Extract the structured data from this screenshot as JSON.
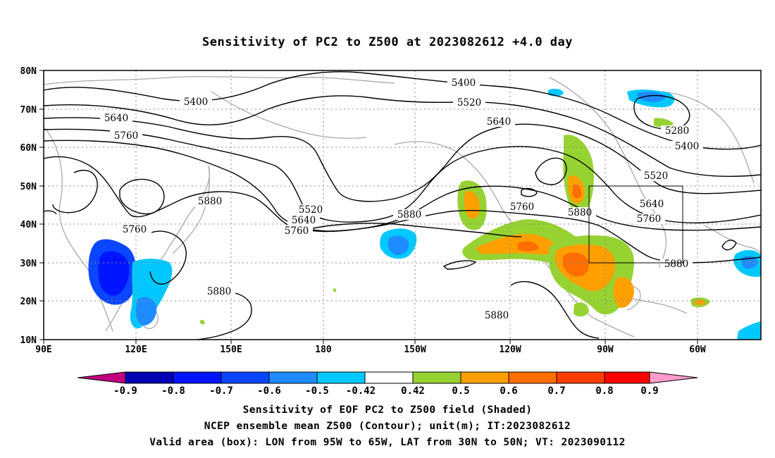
{
  "title": "Sensitivity of PC2 to Z500 at 2023082612 +4.0 day",
  "lat_labels": [
    "80N",
    "70N",
    "60N",
    "50N",
    "40N",
    "30N",
    "20N",
    "10N"
  ],
  "lon_labels": [
    "90E",
    "120E",
    "150E",
    "180",
    "150W",
    "120W",
    "90W",
    "60W"
  ],
  "contour_labels": [
    "5400",
    "5400",
    "5520",
    "5640",
    "5640",
    "5760",
    "5760",
    "5880",
    "5520",
    "5640",
    "5760",
    "5880",
    "5760",
    "5880",
    "5520",
    "5400",
    "5280",
    "5640",
    "5760",
    "5880",
    "5880",
    "5880"
  ],
  "colorbar": {
    "tick_labels": [
      "-0.9",
      "-0.8",
      "-0.7",
      "-0.6",
      "-0.5",
      "-0.42",
      "0.42",
      "0.5",
      "0.6",
      "0.7",
      "0.8",
      "0.9"
    ],
    "colors": [
      "#c0007f",
      "#0000b4",
      "#0014ff",
      "#0a46ff",
      "#1e8cff",
      "#00c8ff",
      "#ffffff",
      "#96d232",
      "#ffa000",
      "#ff6e00",
      "#ff3c00",
      "#ff0000",
      "#ff9ccc"
    ]
  },
  "valid_box": {
    "lon_from": "95W",
    "lon_to": "65W",
    "lat_from": "30N",
    "lat_to": "50N"
  },
  "captions": [
    "Sensitivity of EOF PC2 to Z500 field (Shaded)",
    "NCEP ensemble mean Z500 (Contour); unit(m); IT:2023082612",
    "Valid area (box): LON from 95W to 65W, LAT from 30N to 50N; VT: 2023090112"
  ]
}
